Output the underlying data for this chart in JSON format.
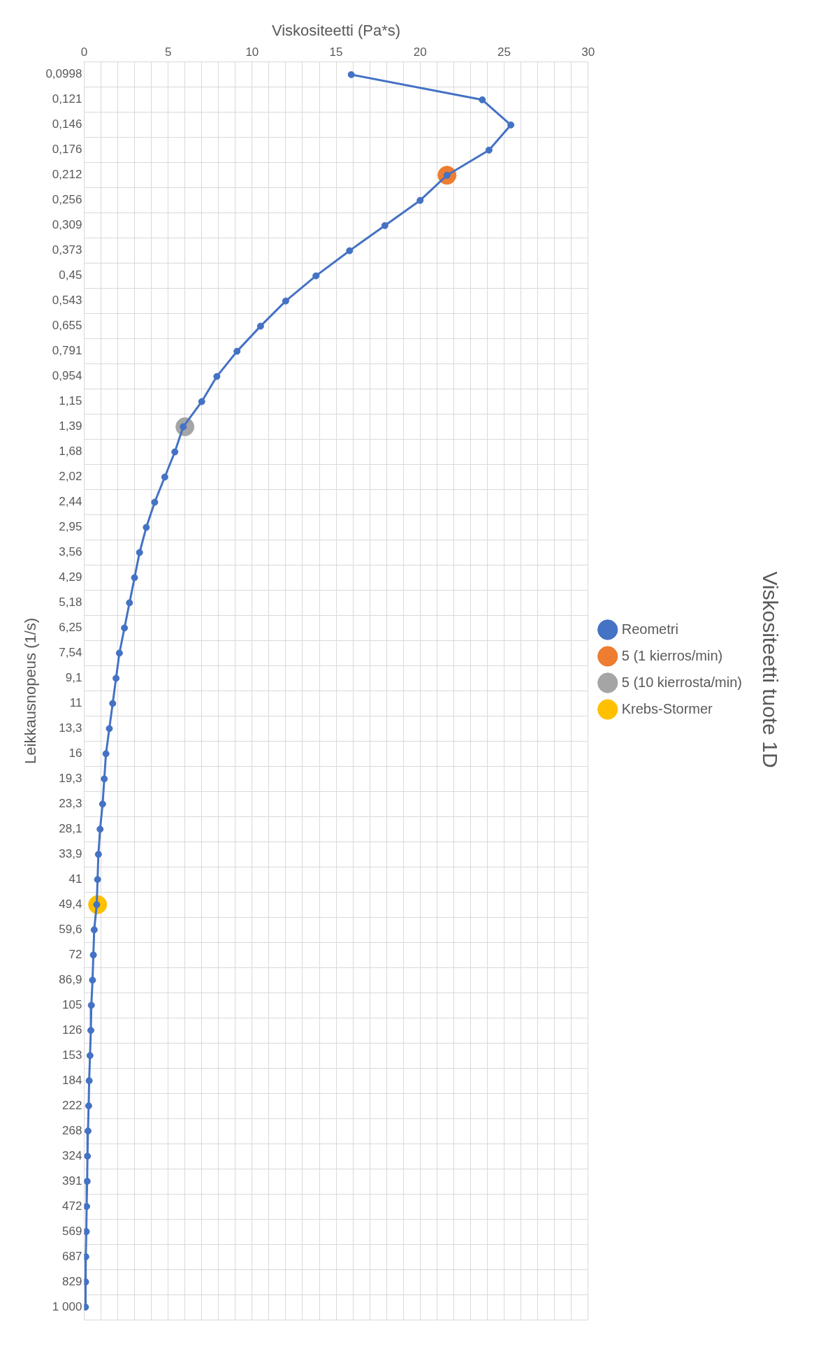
{
  "chart_data": {
    "type": "line",
    "orientation": "horizontal",
    "title": "Viskositeetti tuote 1D",
    "xlabel": "Viskositeetti (Pa*s)",
    "ylabel": "Leikkausnopeus (1/s)",
    "categories": [
      "0,0998",
      "0,121",
      "0,146",
      "0,176",
      "0,212",
      "0,256",
      "0,309",
      "0,373",
      "0,45",
      "0,543",
      "0,655",
      "0,791",
      "0,954",
      "1,15",
      "1,39",
      "1,68",
      "2,02",
      "2,44",
      "2,95",
      "3,56",
      "4,29",
      "5,18",
      "6,25",
      "7,54",
      "9,1",
      "11",
      "13,3",
      "16",
      "19,3",
      "23,3",
      "28,1",
      "33,9",
      "41",
      "49,4",
      "59,6",
      "72",
      "86,9",
      "105",
      "126",
      "153",
      "184",
      "222",
      "268",
      "324",
      "391",
      "472",
      "569",
      "687",
      "829",
      "1 000"
    ],
    "series": [
      {
        "name": "Reometri",
        "color": "#4472c4",
        "values": [
          15.9,
          23.7,
          25.4,
          24.1,
          21.6,
          20.0,
          17.9,
          15.8,
          13.8,
          12.0,
          10.5,
          9.1,
          7.9,
          7.0,
          5.9,
          5.4,
          4.8,
          4.2,
          3.7,
          3.3,
          3.0,
          2.7,
          2.4,
          2.1,
          1.9,
          1.7,
          1.5,
          1.3,
          1.2,
          1.1,
          0.95,
          0.85,
          0.8,
          0.75,
          0.6,
          0.55,
          0.5,
          0.43,
          0.4,
          0.35,
          0.3,
          0.27,
          0.23,
          0.2,
          0.18,
          0.15,
          0.13,
          0.1,
          0.09,
          0.08
        ]
      },
      {
        "name": "5 (1 kierros/min)",
        "color": "#ed7d31",
        "values": [
          null,
          null,
          null,
          null,
          21.6,
          null,
          null,
          null,
          null,
          null,
          null,
          null,
          null,
          null,
          null,
          null,
          null,
          null,
          null,
          null,
          null,
          null,
          null,
          null,
          null,
          null,
          null,
          null,
          null,
          null,
          null,
          null,
          null,
          null,
          null,
          null,
          null,
          null,
          null,
          null,
          null,
          null,
          null,
          null,
          null,
          null,
          null,
          null,
          null,
          null
        ]
      },
      {
        "name": "5 (10 kierrosta/min)",
        "color": "#a5a5a5",
        "values": [
          null,
          null,
          null,
          null,
          null,
          null,
          null,
          null,
          null,
          null,
          null,
          null,
          null,
          null,
          6.0,
          null,
          null,
          null,
          null,
          null,
          null,
          null,
          null,
          null,
          null,
          null,
          null,
          null,
          null,
          null,
          null,
          null,
          null,
          null,
          null,
          null,
          null,
          null,
          null,
          null,
          null,
          null,
          null,
          null,
          null,
          null,
          null,
          null,
          null,
          null
        ]
      },
      {
        "name": "Krebs-Stormer",
        "color": "#ffc000",
        "values": [
          null,
          null,
          null,
          null,
          null,
          null,
          null,
          null,
          null,
          null,
          null,
          null,
          null,
          null,
          null,
          null,
          null,
          null,
          null,
          null,
          null,
          null,
          null,
          null,
          null,
          null,
          null,
          null,
          null,
          null,
          null,
          null,
          null,
          0.8,
          null,
          null,
          null,
          null,
          null,
          null,
          null,
          null,
          null,
          null,
          null,
          null,
          null,
          null,
          null,
          null
        ]
      }
    ],
    "xlim": [
      0,
      30
    ],
    "xticks": [
      0,
      {
        "value": 1,
        "label": null
      },
      {
        "value": 2,
        "label": null
      },
      {
        "value": 3,
        "label": null
      },
      {
        "value": 4,
        "label": null
      },
      5,
      {
        "value": 6,
        "label": null
      },
      {
        "value": 7,
        "label": null
      },
      {
        "value": 8,
        "label": null
      },
      {
        "value": 9,
        "label": null
      },
      10,
      {
        "value": 11,
        "label": null
      },
      {
        "value": 12,
        "label": null
      },
      {
        "value": 13,
        "label": null
      },
      {
        "value": 14,
        "label": null
      },
      15,
      {
        "value": 16,
        "label": null
      },
      {
        "value": 17,
        "label": null
      },
      {
        "value": 18,
        "label": null
      },
      {
        "value": 19,
        "label": null
      },
      20,
      {
        "value": 21,
        "label": null
      },
      {
        "value": 22,
        "label": null
      },
      {
        "value": 23,
        "label": null
      },
      {
        "value": 24,
        "label": null
      },
      25,
      {
        "value": 26,
        "label": null
      },
      {
        "value": 27,
        "label": null
      },
      {
        "value": 28,
        "label": null
      },
      {
        "value": 29,
        "label": null
      },
      30
    ],
    "grid": true,
    "legend": "right",
    "marker": "circle",
    "line_style": "solid"
  }
}
